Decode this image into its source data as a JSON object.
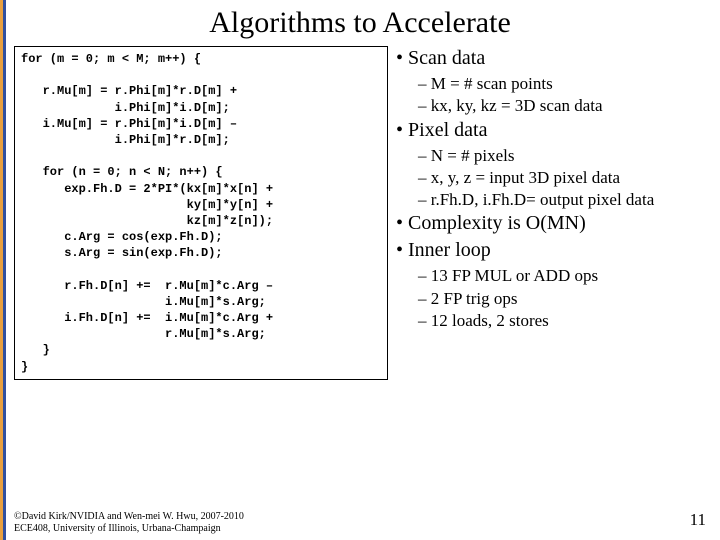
{
  "title": "Algorithms to Accelerate",
  "code": "for (m = 0; m < M; m++) {\n\n   r.Mu[m] = r.Phi[m]*r.D[m] +\n             i.Phi[m]*i.D[m];\n   i.Mu[m] = r.Phi[m]*i.D[m] –\n             i.Phi[m]*r.D[m];\n\n   for (n = 0; n < N; n++) {\n      exp.Fh.D = 2*PI*(kx[m]*x[n] +\n                       ky[m]*y[n] +\n                       kz[m]*z[n]);\n      c.Arg = cos(exp.Fh.D);\n      s.Arg = sin(exp.Fh.D);\n\n      r.Fh.D[n] +=  r.Mu[m]*c.Arg –\n                    i.Mu[m]*s.Arg;\n      i.Fh.D[n] +=  i.Mu[m]*c.Arg +\n                    r.Mu[m]*s.Arg;\n   }\n}",
  "bullets": {
    "scan_title": "Scan data",
    "scan_sub1": "M = # scan points",
    "scan_sub2": "kx, ky, kz = 3D scan data",
    "pixel_title": "Pixel data",
    "pixel_sub1": "N = # pixels",
    "pixel_sub2": "x, y, z = input 3D pixel data",
    "pixel_sub3": "r.Fh.D, i.Fh.D= output pixel data",
    "complexity": "Complexity is O(MN)",
    "inner_title": "Inner loop",
    "inner_sub1": "13 FP MUL or ADD ops",
    "inner_sub2": "2 FP trig ops",
    "inner_sub3": "12 loads, 2 stores"
  },
  "footer_line1": "David Kirk/NVIDIA and Wen-mei W. Hwu, 2007-2010",
  "footer_line2": "ECE408, University of Illinois, Urbana-Champaign",
  "copyright_symbol": "©",
  "page_number": "11",
  "colors": {
    "edge_orange": "#e8a040",
    "edge_blue": "#3050a0",
    "background": "#ffffff",
    "text": "#000000"
  },
  "typography": {
    "title_fontsize": 30,
    "bullet1_fontsize": 20,
    "bullet2_fontsize": 17,
    "code_fontsize": 12,
    "footer_fontsize": 10,
    "title_family": "Times New Roman",
    "code_family": "Courier New"
  }
}
